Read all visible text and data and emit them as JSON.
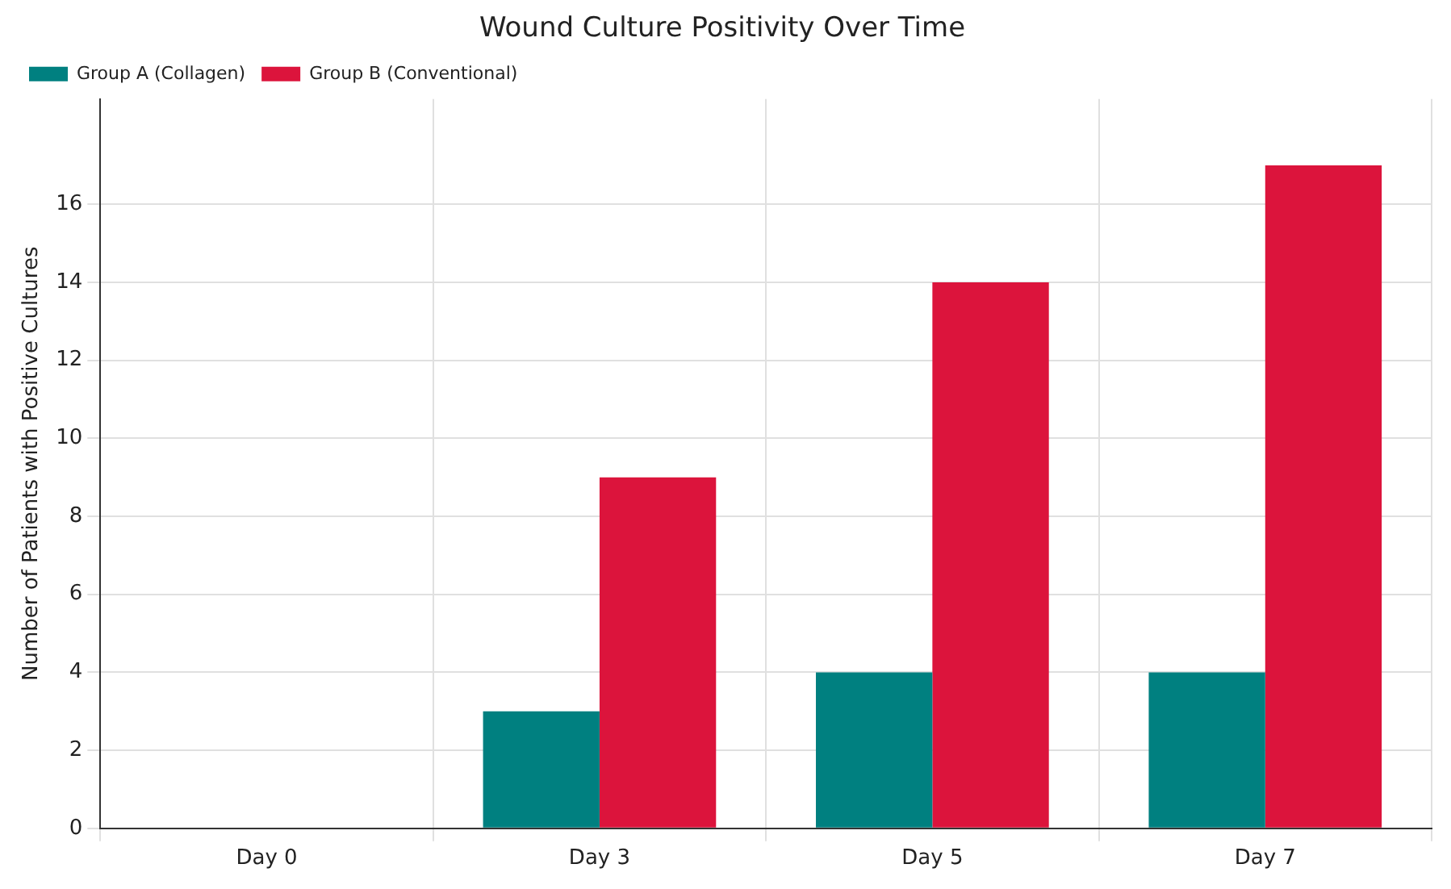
{
  "chart_data": {
    "type": "bar",
    "title": "Wound Culture Positivity Over Time",
    "ylabel": "Number of Patients with Positive Cultures",
    "categories": [
      "Day 0",
      "Day 3",
      "Day 5",
      "Day 7"
    ],
    "series": [
      {
        "name": "Group A (Collagen)",
        "color": "#008080",
        "values": [
          0,
          3,
          4,
          4
        ]
      },
      {
        "name": "Group B (Conventional)",
        "color": "#dc143c",
        "values": [
          0,
          9,
          14,
          17
        ]
      }
    ],
    "ylim": [
      0,
      18.7
    ],
    "yticks": [
      0,
      2,
      4,
      6,
      8,
      10,
      12,
      14,
      16
    ],
    "grid": true,
    "legend": "top left"
  }
}
